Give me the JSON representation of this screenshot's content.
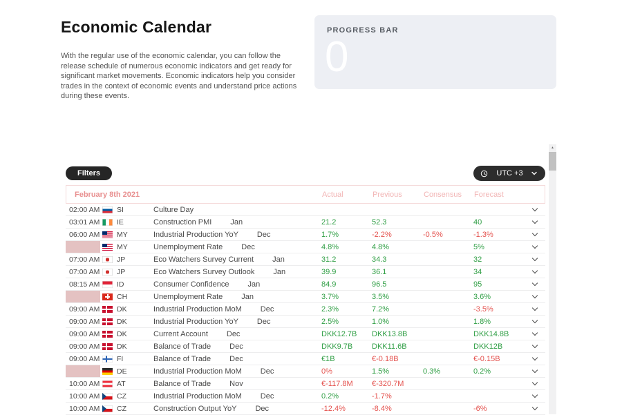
{
  "page": {
    "title": "Economic Calendar",
    "description": "With the regular use of the economic calendar, you can follow the release schedule of numerous economic indicators and get ready for significant market movements. Economic indicators help you consider trades in the context of economic events and understand price actions during these events."
  },
  "progress": {
    "label": "PROGRESS BAR",
    "value": "0"
  },
  "toolbar": {
    "filters_label": "Filters",
    "timezone": "UTC +3"
  },
  "icons": {
    "timezone": "clock-icon",
    "timezone_open": "chevron-down-icon",
    "row_expand": "chevron-down-icon",
    "scroll_up": "arrow-up-icon"
  },
  "colors": {
    "positive": "#2f9e44",
    "negative": "#e4524e",
    "date_header_text": "#e88f8f",
    "column_header_text": "#f2b5b5",
    "time_placeholder": "#e4c2c2",
    "dark_button": "#262626",
    "progress_card_bg": "#edeff4"
  },
  "table": {
    "date_header": "February 8th 2021",
    "columns": [
      "Actual",
      "Previous",
      "Consensus",
      "Forecast"
    ],
    "rows": [
      {
        "time": "02:00 AM",
        "placeholder": false,
        "flag": "si",
        "country": "SI",
        "event": "Culture Day",
        "period": "",
        "actual": null,
        "previous": null,
        "consensus": null,
        "forecast": null
      },
      {
        "time": "03:01 AM",
        "placeholder": false,
        "flag": "ie",
        "country": "IE",
        "event": "Construction PMI",
        "period": "Jan",
        "actual": {
          "v": "21.2",
          "s": "pos"
        },
        "previous": {
          "v": "52.3",
          "s": "pos"
        },
        "consensus": null,
        "forecast": {
          "v": "40",
          "s": "pos"
        }
      },
      {
        "time": "06:00 AM",
        "placeholder": false,
        "flag": "my",
        "country": "MY",
        "event": "Industrial Production YoY",
        "period": "Dec",
        "actual": {
          "v": "1.7%",
          "s": "pos"
        },
        "previous": {
          "v": "-2.2%",
          "s": "neg"
        },
        "consensus": {
          "v": "-0.5%",
          "s": "neg"
        },
        "forecast": {
          "v": "-1.3%",
          "s": "neg"
        }
      },
      {
        "time": "",
        "placeholder": true,
        "flag": "my",
        "country": "MY",
        "event": "Unemployment Rate",
        "period": "Dec",
        "actual": {
          "v": "4.8%",
          "s": "pos"
        },
        "previous": {
          "v": "4.8%",
          "s": "pos"
        },
        "consensus": null,
        "forecast": {
          "v": "5%",
          "s": "pos"
        }
      },
      {
        "time": "07:00 AM",
        "placeholder": false,
        "flag": "jp",
        "country": "JP",
        "event": "Eco Watchers Survey Current",
        "period": "Jan",
        "actual": {
          "v": "31.2",
          "s": "pos"
        },
        "previous": {
          "v": "34.3",
          "s": "pos"
        },
        "consensus": null,
        "forecast": {
          "v": "32",
          "s": "pos"
        }
      },
      {
        "time": "07:00 AM",
        "placeholder": false,
        "flag": "jp",
        "country": "JP",
        "event": "Eco Watchers Survey Outlook",
        "period": "Jan",
        "actual": {
          "v": "39.9",
          "s": "pos"
        },
        "previous": {
          "v": "36.1",
          "s": "pos"
        },
        "consensus": null,
        "forecast": {
          "v": "34",
          "s": "pos"
        }
      },
      {
        "time": "08:15 AM",
        "placeholder": false,
        "flag": "id",
        "country": "ID",
        "event": "Consumer Confidence",
        "period": "Jan",
        "actual": {
          "v": "84.9",
          "s": "pos"
        },
        "previous": {
          "v": "96.5",
          "s": "pos"
        },
        "consensus": null,
        "forecast": {
          "v": "95",
          "s": "pos"
        }
      },
      {
        "time": "",
        "placeholder": true,
        "flag": "ch",
        "country": "CH",
        "event": "Unemployment Rate",
        "period": "Jan",
        "actual": {
          "v": "3.7%",
          "s": "pos"
        },
        "previous": {
          "v": "3.5%",
          "s": "pos"
        },
        "consensus": null,
        "forecast": {
          "v": "3.6%",
          "s": "pos"
        }
      },
      {
        "time": "09:00 AM",
        "placeholder": false,
        "flag": "dk",
        "country": "DK",
        "event": "Industrial Production MoM",
        "period": "Dec",
        "actual": {
          "v": "2.3%",
          "s": "pos"
        },
        "previous": {
          "v": "7.2%",
          "s": "pos"
        },
        "consensus": null,
        "forecast": {
          "v": "-3.5%",
          "s": "neg"
        }
      },
      {
        "time": "09:00 AM",
        "placeholder": false,
        "flag": "dk",
        "country": "DK",
        "event": "Industrial Production YoY",
        "period": "Dec",
        "actual": {
          "v": "2.5%",
          "s": "pos"
        },
        "previous": {
          "v": "1.0%",
          "s": "pos"
        },
        "consensus": null,
        "forecast": {
          "v": "1.8%",
          "s": "pos"
        }
      },
      {
        "time": "09:00 AM",
        "placeholder": false,
        "flag": "dk",
        "country": "DK",
        "event": "Current Account",
        "period": "Dec",
        "actual": {
          "v": "DKK12.7B",
          "s": "pos"
        },
        "previous": {
          "v": "DKK13.8B",
          "s": "pos"
        },
        "consensus": null,
        "forecast": {
          "v": "DKK14.8B",
          "s": "pos"
        }
      },
      {
        "time": "09:00 AM",
        "placeholder": false,
        "flag": "dk",
        "country": "DK",
        "event": "Balance of Trade",
        "period": "Dec",
        "actual": {
          "v": "DKK9.7B",
          "s": "pos"
        },
        "previous": {
          "v": "DKK11.6B",
          "s": "pos"
        },
        "consensus": null,
        "forecast": {
          "v": "DKK12B",
          "s": "pos"
        }
      },
      {
        "time": "09:00 AM",
        "placeholder": false,
        "flag": "fi",
        "country": "FI",
        "event": "Balance of Trade",
        "period": "Dec",
        "actual": {
          "v": "€1B",
          "s": "pos"
        },
        "previous": {
          "v": "€-0.18B",
          "s": "neg"
        },
        "consensus": null,
        "forecast": {
          "v": "€-0.15B",
          "s": "neg"
        }
      },
      {
        "time": "",
        "placeholder": true,
        "flag": "de",
        "country": "DE",
        "event": "Industrial Production MoM",
        "period": "Dec",
        "actual": {
          "v": "0%",
          "s": "neg"
        },
        "previous": {
          "v": "1.5%",
          "s": "pos"
        },
        "consensus": {
          "v": "0.3%",
          "s": "pos"
        },
        "forecast": {
          "v": "0.2%",
          "s": "pos"
        }
      },
      {
        "time": "10:00 AM",
        "placeholder": false,
        "flag": "at",
        "country": "AT",
        "event": "Balance of Trade",
        "period": "Nov",
        "actual": {
          "v": "€-117.8M",
          "s": "neg"
        },
        "previous": {
          "v": "€-320.7M",
          "s": "neg"
        },
        "consensus": null,
        "forecast": null
      },
      {
        "time": "10:00 AM",
        "placeholder": false,
        "flag": "cz",
        "country": "CZ",
        "event": "Industrial Production MoM",
        "period": "Dec",
        "actual": {
          "v": "0.2%",
          "s": "pos"
        },
        "previous": {
          "v": "-1.7%",
          "s": "neg"
        },
        "consensus": null,
        "forecast": null
      },
      {
        "time": "10:00 AM",
        "placeholder": false,
        "flag": "cz",
        "country": "CZ",
        "event": "Construction Output YoY",
        "period": "Dec",
        "actual": {
          "v": "-12.4%",
          "s": "neg"
        },
        "previous": {
          "v": "-8.4%",
          "s": "neg"
        },
        "consensus": null,
        "forecast": {
          "v": "-6%",
          "s": "neg"
        }
      }
    ]
  },
  "scrollbar": {
    "up_glyph": "▲"
  }
}
